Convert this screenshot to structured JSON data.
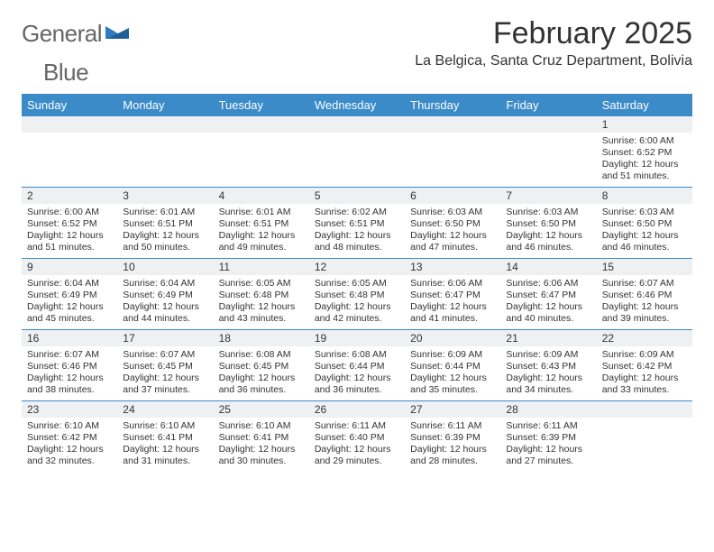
{
  "brand": {
    "word1": "General",
    "word2": "Blue"
  },
  "title": "February 2025",
  "location": "La Belgica, Santa Cruz Department, Bolivia",
  "colors": {
    "header_bg": "#3b8bc9",
    "header_text": "#ffffff",
    "daynum_bg": "#eef0f2",
    "rule": "#3b8bc9",
    "text": "#333333",
    "logo_gray": "#666666",
    "logo_blue": "#2f7bbf"
  },
  "day_names": [
    "Sunday",
    "Monday",
    "Tuesday",
    "Wednesday",
    "Thursday",
    "Friday",
    "Saturday"
  ],
  "weeks": [
    [
      {
        "n": "",
        "sr": "",
        "ss": "",
        "dl": ""
      },
      {
        "n": "",
        "sr": "",
        "ss": "",
        "dl": ""
      },
      {
        "n": "",
        "sr": "",
        "ss": "",
        "dl": ""
      },
      {
        "n": "",
        "sr": "",
        "ss": "",
        "dl": ""
      },
      {
        "n": "",
        "sr": "",
        "ss": "",
        "dl": ""
      },
      {
        "n": "",
        "sr": "",
        "ss": "",
        "dl": ""
      },
      {
        "n": "1",
        "sr": "Sunrise: 6:00 AM",
        "ss": "Sunset: 6:52 PM",
        "dl": "Daylight: 12 hours and 51 minutes."
      }
    ],
    [
      {
        "n": "2",
        "sr": "Sunrise: 6:00 AM",
        "ss": "Sunset: 6:52 PM",
        "dl": "Daylight: 12 hours and 51 minutes."
      },
      {
        "n": "3",
        "sr": "Sunrise: 6:01 AM",
        "ss": "Sunset: 6:51 PM",
        "dl": "Daylight: 12 hours and 50 minutes."
      },
      {
        "n": "4",
        "sr": "Sunrise: 6:01 AM",
        "ss": "Sunset: 6:51 PM",
        "dl": "Daylight: 12 hours and 49 minutes."
      },
      {
        "n": "5",
        "sr": "Sunrise: 6:02 AM",
        "ss": "Sunset: 6:51 PM",
        "dl": "Daylight: 12 hours and 48 minutes."
      },
      {
        "n": "6",
        "sr": "Sunrise: 6:03 AM",
        "ss": "Sunset: 6:50 PM",
        "dl": "Daylight: 12 hours and 47 minutes."
      },
      {
        "n": "7",
        "sr": "Sunrise: 6:03 AM",
        "ss": "Sunset: 6:50 PM",
        "dl": "Daylight: 12 hours and 46 minutes."
      },
      {
        "n": "8",
        "sr": "Sunrise: 6:03 AM",
        "ss": "Sunset: 6:50 PM",
        "dl": "Daylight: 12 hours and 46 minutes."
      }
    ],
    [
      {
        "n": "9",
        "sr": "Sunrise: 6:04 AM",
        "ss": "Sunset: 6:49 PM",
        "dl": "Daylight: 12 hours and 45 minutes."
      },
      {
        "n": "10",
        "sr": "Sunrise: 6:04 AM",
        "ss": "Sunset: 6:49 PM",
        "dl": "Daylight: 12 hours and 44 minutes."
      },
      {
        "n": "11",
        "sr": "Sunrise: 6:05 AM",
        "ss": "Sunset: 6:48 PM",
        "dl": "Daylight: 12 hours and 43 minutes."
      },
      {
        "n": "12",
        "sr": "Sunrise: 6:05 AM",
        "ss": "Sunset: 6:48 PM",
        "dl": "Daylight: 12 hours and 42 minutes."
      },
      {
        "n": "13",
        "sr": "Sunrise: 6:06 AM",
        "ss": "Sunset: 6:47 PM",
        "dl": "Daylight: 12 hours and 41 minutes."
      },
      {
        "n": "14",
        "sr": "Sunrise: 6:06 AM",
        "ss": "Sunset: 6:47 PM",
        "dl": "Daylight: 12 hours and 40 minutes."
      },
      {
        "n": "15",
        "sr": "Sunrise: 6:07 AM",
        "ss": "Sunset: 6:46 PM",
        "dl": "Daylight: 12 hours and 39 minutes."
      }
    ],
    [
      {
        "n": "16",
        "sr": "Sunrise: 6:07 AM",
        "ss": "Sunset: 6:46 PM",
        "dl": "Daylight: 12 hours and 38 minutes."
      },
      {
        "n": "17",
        "sr": "Sunrise: 6:07 AM",
        "ss": "Sunset: 6:45 PM",
        "dl": "Daylight: 12 hours and 37 minutes."
      },
      {
        "n": "18",
        "sr": "Sunrise: 6:08 AM",
        "ss": "Sunset: 6:45 PM",
        "dl": "Daylight: 12 hours and 36 minutes."
      },
      {
        "n": "19",
        "sr": "Sunrise: 6:08 AM",
        "ss": "Sunset: 6:44 PM",
        "dl": "Daylight: 12 hours and 36 minutes."
      },
      {
        "n": "20",
        "sr": "Sunrise: 6:09 AM",
        "ss": "Sunset: 6:44 PM",
        "dl": "Daylight: 12 hours and 35 minutes."
      },
      {
        "n": "21",
        "sr": "Sunrise: 6:09 AM",
        "ss": "Sunset: 6:43 PM",
        "dl": "Daylight: 12 hours and 34 minutes."
      },
      {
        "n": "22",
        "sr": "Sunrise: 6:09 AM",
        "ss": "Sunset: 6:42 PM",
        "dl": "Daylight: 12 hours and 33 minutes."
      }
    ],
    [
      {
        "n": "23",
        "sr": "Sunrise: 6:10 AM",
        "ss": "Sunset: 6:42 PM",
        "dl": "Daylight: 12 hours and 32 minutes."
      },
      {
        "n": "24",
        "sr": "Sunrise: 6:10 AM",
        "ss": "Sunset: 6:41 PM",
        "dl": "Daylight: 12 hours and 31 minutes."
      },
      {
        "n": "25",
        "sr": "Sunrise: 6:10 AM",
        "ss": "Sunset: 6:41 PM",
        "dl": "Daylight: 12 hours and 30 minutes."
      },
      {
        "n": "26",
        "sr": "Sunrise: 6:11 AM",
        "ss": "Sunset: 6:40 PM",
        "dl": "Daylight: 12 hours and 29 minutes."
      },
      {
        "n": "27",
        "sr": "Sunrise: 6:11 AM",
        "ss": "Sunset: 6:39 PM",
        "dl": "Daylight: 12 hours and 28 minutes."
      },
      {
        "n": "28",
        "sr": "Sunrise: 6:11 AM",
        "ss": "Sunset: 6:39 PM",
        "dl": "Daylight: 12 hours and 27 minutes."
      },
      {
        "n": "",
        "sr": "",
        "ss": "",
        "dl": ""
      }
    ]
  ]
}
